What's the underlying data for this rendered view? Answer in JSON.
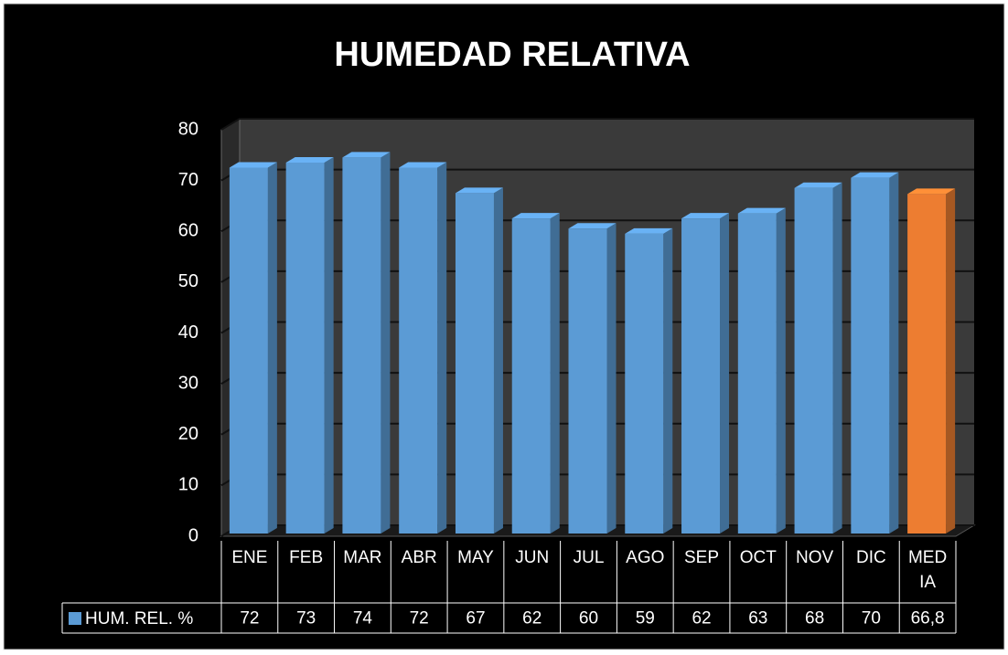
{
  "chart_data": {
    "type": "bar3d",
    "title": "HUMEDAD RELATIVA",
    "categories": [
      "ENE",
      "FEB",
      "MAR",
      "ABR",
      "MAY",
      "JUN",
      "JUL",
      "AGO",
      "SEP",
      "OCT",
      "NOV",
      "DIC",
      "MEDIA"
    ],
    "series": [
      {
        "name": "HUM. REL. %",
        "color": "#5b9bd5",
        "values": [
          72,
          73,
          74,
          72,
          67,
          62,
          60,
          59,
          62,
          63,
          68,
          70,
          66.8
        ],
        "value_labels": [
          "72",
          "73",
          "74",
          "72",
          "67",
          "62",
          "60",
          "59",
          "62",
          "63",
          "68",
          "70",
          "66,8"
        ],
        "colors": [
          "#5b9bd5",
          "#5b9bd5",
          "#5b9bd5",
          "#5b9bd5",
          "#5b9bd5",
          "#5b9bd5",
          "#5b9bd5",
          "#5b9bd5",
          "#5b9bd5",
          "#5b9bd5",
          "#5b9bd5",
          "#5b9bd5",
          "#ed7d31"
        ]
      }
    ],
    "ylim": [
      0,
      80
    ],
    "yticks": [
      0,
      10,
      20,
      30,
      40,
      50,
      60,
      70,
      80
    ],
    "grid": true,
    "data_table": true
  }
}
